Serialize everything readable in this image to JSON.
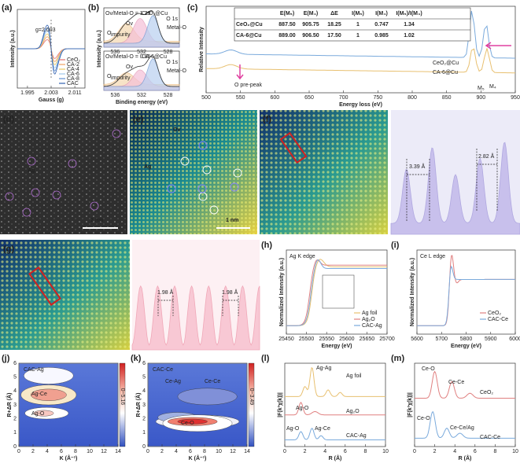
{
  "panels": {
    "a": {
      "label": "(a)",
      "xlabel": "Gauss (g)",
      "ylabel": "Intensity (a.u.)",
      "xticks": [
        "1.995",
        "2.003",
        "2.011"
      ],
      "annotations": [
        "g=2.003"
      ],
      "legend": [
        "CeO₂",
        "CA-2",
        "CA-4",
        "CA-6",
        "CA-8",
        "CAC"
      ]
    },
    "b": {
      "label": "(b)",
      "xlabel": "Binding energy (eV)",
      "ylabel": "Intensity (a.u.)",
      "xticks": [
        "536",
        "532",
        "528"
      ],
      "annotations": [
        "Ov/Metal-O = 1.29",
        "CeO₂@Cu",
        "O 1s",
        "Ov",
        "Metal-O",
        "O",
        "impurity",
        "Ov/Metal-O = 0.85",
        "CA-6@Cu",
        "O 1s",
        "Ov",
        "Metal-O",
        "O",
        "impurity"
      ]
    },
    "c": {
      "label": "(c)",
      "xlabel": "Energy loss (eV)",
      "ylabel": "Relative Intensity",
      "xticks": [
        "500",
        "550",
        "600",
        "650",
        "700",
        "750",
        "800",
        "850",
        "900",
        "950"
      ],
      "table": {
        "header": [
          "E(M₅)",
          "E(M₄)",
          "ΔE",
          "I(M₅)",
          "I(M₄)",
          "I(M₅)/I(M₄)"
        ],
        "rows": [
          [
            "CeO₂@Cu",
            "887.50",
            "905.75",
            "18.25",
            "1",
            "0.747",
            "1.34"
          ],
          [
            "CA-6@Cu",
            "889.00",
            "906.50",
            "17.50",
            "1",
            "0.985",
            "1.02"
          ]
        ]
      },
      "annotations": [
        "CeO₂@Cu",
        "CA-6@Cu",
        "O pre-peak",
        "M₅",
        "M₄"
      ]
    },
    "d": {
      "label": "(d)",
      "annotations": [
        "Ag",
        "2 nm"
      ]
    },
    "e": {
      "label": "(e)",
      "annotations": [
        "Ov",
        "Ag",
        "1 nm"
      ]
    },
    "f": {
      "label": "(f)",
      "annotations": [
        "3.39 Å",
        "2.82 Å"
      ]
    },
    "g": {
      "label": "(g)",
      "annotations": [
        "1.98 Å",
        "1.98 Å"
      ]
    },
    "h": {
      "label": "(h)",
      "xlabel": "Energy (eV)",
      "ylabel": "Normalized Intensity (a.u.)",
      "xticks": [
        "25450",
        "25500",
        "25550",
        "25600",
        "25650",
        "25700"
      ],
      "annotations": [
        "Ag K edge"
      ],
      "legend": [
        "Ag foil",
        "Ag₂O",
        "CAC-Ag"
      ]
    },
    "i": {
      "label": "(i)",
      "xlabel": "Energy (eV)",
      "ylabel": "Normalized Intensity (a.u.)",
      "xticks": [
        "5600",
        "5700",
        "5800",
        "5900",
        "6000"
      ],
      "annotations": [
        "Ce L edge"
      ],
      "legend": [
        "CeO₂",
        "CAC-Ce"
      ]
    },
    "j": {
      "label": "(j)",
      "xlabel": "K (Å⁻¹)",
      "ylabel": "R+ΔR (Å)",
      "xticks": [
        "0",
        "2",
        "4",
        "6",
        "8",
        "10",
        "12",
        "14"
      ],
      "yticks": [
        "0",
        "1",
        "2",
        "3",
        "4",
        "5",
        "6"
      ],
      "annotations": [
        "CAC-Ag",
        "Ag-Ce",
        "Ag-O"
      ],
      "colorbar": "0~5.16"
    },
    "k": {
      "label": "(k)",
      "xlabel": "K (Å⁻¹)",
      "ylabel": "R+ΔR (Å)",
      "xticks": [
        "0",
        "2",
        "4",
        "6",
        "8",
        "10",
        "12",
        "14"
      ],
      "yticks": [
        "0",
        "1",
        "2",
        "3",
        "4",
        "5",
        "6"
      ],
      "annotations": [
        "CAC-Ce",
        "Ce-Ag",
        "Ce-Ce",
        "Ce-O"
      ],
      "colorbar": "0~3.49"
    },
    "l": {
      "label": "(l)",
      "xlabel": "R (Å)",
      "ylabel": "|F(k³χ(k))|",
      "xticks": [
        "0",
        "2",
        "4",
        "6",
        "8",
        "10"
      ],
      "annotations": [
        "Ag-Ag",
        "Ag foil",
        "Ag-O",
        "Ag₂O",
        "Ag-O",
        "Ag-Ce",
        "CAC-Ag"
      ]
    },
    "m": {
      "label": "(m)",
      "xlabel": "R (Å)",
      "ylabel": "|F(k³χ(k))|",
      "xticks": [
        "0",
        "2",
        "4",
        "6",
        "8",
        "10"
      ],
      "annotations": [
        "Ce-O",
        "Ce-Ce",
        "CeO₂",
        "Ce-O",
        "Ce-Ce/Ag",
        "CAC-Ce"
      ]
    }
  }
}
